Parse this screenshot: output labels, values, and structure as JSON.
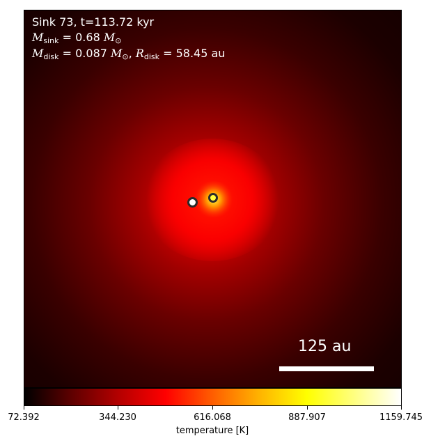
{
  "title_line": "Sink 73, t=113.72 kyr",
  "sink_mass": {
    "symbol": "M",
    "subscript": "sink",
    "value": "= 0.68",
    "unit": "M",
    "unit_subscript": "⊙"
  },
  "disk_props": {
    "mass_symbol": "M",
    "mass_subscript": "disk",
    "mass_value": "= 0.087",
    "mass_unit": "M",
    "mass_unit_subscript": "⊙",
    "separator": ",",
    "radius_symbol": "R",
    "radius_subscript": "disk",
    "radius_value": "= 58.45 au"
  },
  "scalebar": {
    "label": "125 au"
  },
  "colorbar": {
    "label": "temperature [K]",
    "ticks": [
      "72.392",
      "344.230",
      "616.068",
      "887.907",
      "1159.745"
    ],
    "colormap": [
      "#000000",
      "#5e0000",
      "#b40000",
      "#ff0000",
      "#ff5e00",
      "#ffb400",
      "#ffff00",
      "#ffff80",
      "#ffffff"
    ]
  },
  "sinks": [
    {
      "fill": "#ffffff",
      "role": "primary-sink"
    },
    {
      "fill": "#ffff3c",
      "role": "secondary-sink"
    }
  ]
}
